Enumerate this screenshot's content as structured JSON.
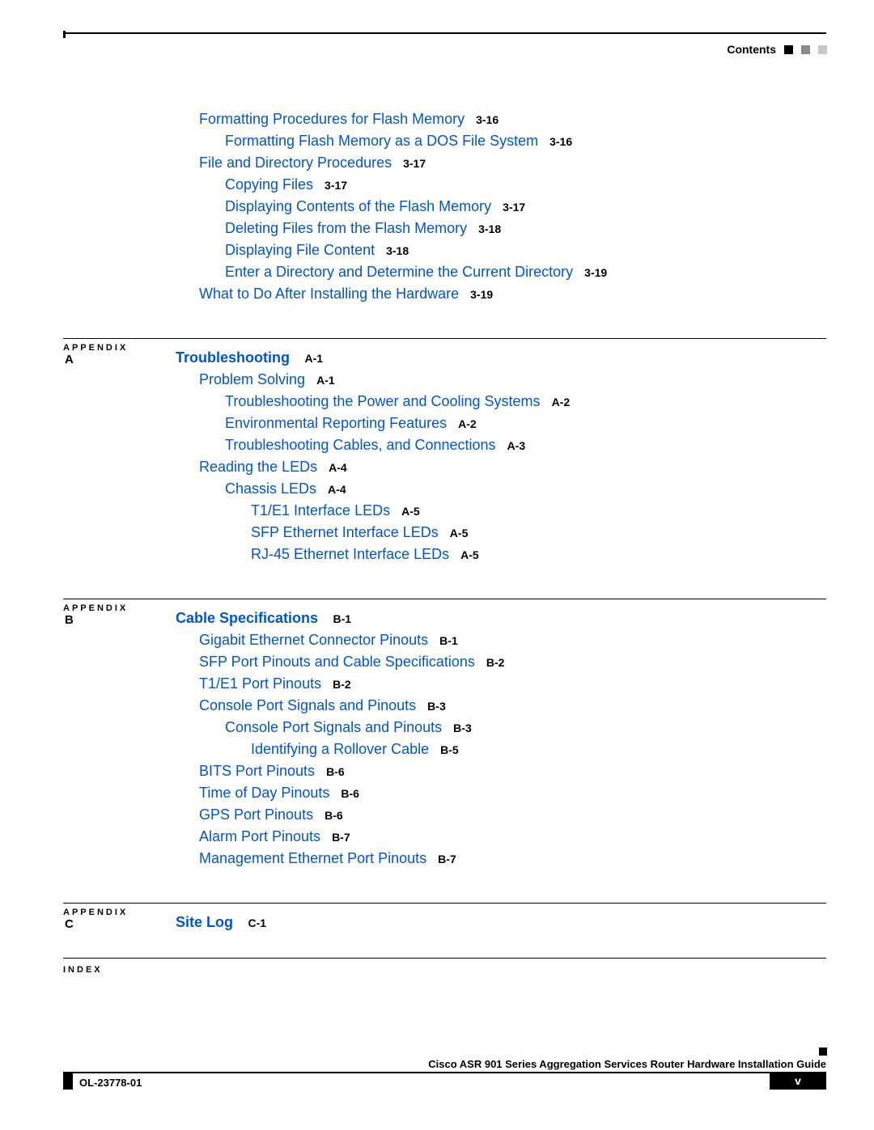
{
  "header": {
    "title": "Contents"
  },
  "link_color": "#0055cc",
  "text_color": "#000000",
  "font_family": "Arial",
  "chapter3_tail": [
    {
      "indent": 1,
      "text": "Formatting Procedures for Flash Memory",
      "ref": "3-16"
    },
    {
      "indent": 2,
      "text": "Formatting Flash Memory as a DOS File System",
      "ref": "3-16"
    },
    {
      "indent": 1,
      "text": "File and Directory Procedures",
      "ref": "3-17"
    },
    {
      "indent": 2,
      "text": "Copying Files",
      "ref": "3-17"
    },
    {
      "indent": 2,
      "text": "Displaying Contents of the Flash Memory",
      "ref": "3-17"
    },
    {
      "indent": 2,
      "text": "Deleting Files from the Flash Memory",
      "ref": "3-18"
    },
    {
      "indent": 2,
      "text": "Displaying File Content",
      "ref": "3-18"
    },
    {
      "indent": 2,
      "text": "Enter a Directory and Determine the Current Directory",
      "ref": "3-19"
    },
    {
      "indent": 1,
      "text": "What to Do After Installing the Hardware",
      "ref": "3-19"
    }
  ],
  "appendix_a": {
    "label": "APPENDIX",
    "char": "A",
    "title": "Troubleshooting",
    "title_ref": "A-1",
    "items": [
      {
        "indent": 1,
        "text": "Problem Solving",
        "ref": "A-1"
      },
      {
        "indent": 2,
        "text": "Troubleshooting the Power and Cooling Systems",
        "ref": "A-2"
      },
      {
        "indent": 2,
        "text": "Environmental Reporting Features",
        "ref": "A-2"
      },
      {
        "indent": 2,
        "text": "Troubleshooting Cables, and Connections",
        "ref": "A-3"
      },
      {
        "indent": 1,
        "text": "Reading the LEDs",
        "ref": "A-4"
      },
      {
        "indent": 2,
        "text": "Chassis LEDs",
        "ref": "A-4"
      },
      {
        "indent": 3,
        "text": "T1/E1 Interface LEDs",
        "ref": "A-5"
      },
      {
        "indent": 3,
        "text": "SFP Ethernet Interface LEDs",
        "ref": "A-5"
      },
      {
        "indent": 3,
        "text": "RJ-45 Ethernet Interface LEDs",
        "ref": "A-5"
      }
    ]
  },
  "appendix_b": {
    "label": "APPENDIX",
    "char": "B",
    "title": "Cable Specifications",
    "title_ref": "B-1",
    "items": [
      {
        "indent": 1,
        "text": "Gigabit Ethernet Connector Pinouts",
        "ref": "B-1"
      },
      {
        "indent": 1,
        "text": "SFP Port Pinouts and Cable Specifications",
        "ref": "B-2"
      },
      {
        "indent": 1,
        "text": "T1/E1 Port Pinouts",
        "ref": "B-2"
      },
      {
        "indent": 1,
        "text": "Console Port Signals and Pinouts",
        "ref": "B-3"
      },
      {
        "indent": 2,
        "text": "Console Port Signals and Pinouts",
        "ref": "B-3"
      },
      {
        "indent": 3,
        "text": "Identifying a Rollover Cable",
        "ref": "B-5"
      },
      {
        "indent": 1,
        "text": "BITS Port Pinouts",
        "ref": "B-6"
      },
      {
        "indent": 1,
        "text": "Time of Day Pinouts",
        "ref": "B-6"
      },
      {
        "indent": 1,
        "text": "GPS Port Pinouts",
        "ref": "B-6"
      },
      {
        "indent": 1,
        "text": "Alarm Port Pinouts",
        "ref": "B-7"
      },
      {
        "indent": 1,
        "text": "Management Ethernet Port Pinouts",
        "ref": "B-7"
      }
    ]
  },
  "appendix_c": {
    "label": "APPENDIX",
    "char": "C",
    "title": "Site Log",
    "title_ref": "C-1",
    "items": []
  },
  "index_label": "INDEX",
  "footer": {
    "guide": "Cisco ASR 901 Series Aggregation Services Router Hardware Installation Guide",
    "doc_id": "OL-23778-01",
    "page_num": "v"
  }
}
